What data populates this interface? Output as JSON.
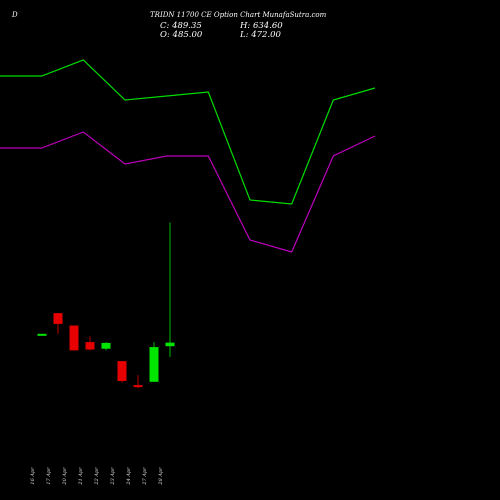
{
  "header": {
    "left_mark": "D",
    "title": "TRIDN 11700  CE Option Chart MunafaSutra.com"
  },
  "ohlc": {
    "close": "C: 489.35",
    "open": "O: 485.00",
    "high": "H: 634.60",
    "low": "L: 472.00"
  },
  "colors": {
    "background": "#000000",
    "up": "#00e600",
    "down": "#e60000",
    "band_upper": "#00dd00",
    "band_lower": "#bb00bb"
  },
  "chart_data": {
    "type": "candlestick",
    "x": [
      "16 Apr",
      "17 Apr",
      "20 Apr",
      "21 Apr",
      "22 Apr",
      "23 Apr",
      "24 Apr",
      "27 Apr",
      "28 Apr"
    ],
    "candles": [
      {
        "open": 500,
        "high": 500,
        "low": 500,
        "close": 500,
        "dir": "up"
      },
      {
        "open": 525,
        "high": 525,
        "low": 500,
        "close": 512,
        "dir": "down"
      },
      {
        "open": 510,
        "high": 510,
        "low": 480,
        "close": 480,
        "dir": "down"
      },
      {
        "open": 490,
        "high": 497,
        "low": 480,
        "close": 481,
        "dir": "down"
      },
      {
        "open": 482,
        "high": 490,
        "low": 480,
        "close": 489,
        "dir": "up"
      },
      {
        "open": 467,
        "high": 467,
        "low": 441,
        "close": 443,
        "dir": "down"
      },
      {
        "open": 438,
        "high": 450,
        "low": 434,
        "close": 436,
        "dir": "down"
      },
      {
        "open": 442,
        "high": 490,
        "low": 442,
        "close": 484,
        "dir": "up"
      },
      {
        "open": 485,
        "high": 634.6,
        "low": 472,
        "close": 489.35,
        "dir": "up"
      }
    ],
    "price_range": [
      420,
      640
    ],
    "bands": {
      "upper": [
        0.28,
        0.28,
        0.3,
        0.25,
        0.255,
        0.26,
        0.125,
        0.12,
        0.25,
        0.265
      ],
      "lower": [
        0.19,
        0.19,
        0.21,
        0.17,
        0.18,
        0.18,
        0.075,
        0.06,
        0.18,
        0.205
      ],
      "scale": [
        0,
        0.3
      ]
    }
  }
}
